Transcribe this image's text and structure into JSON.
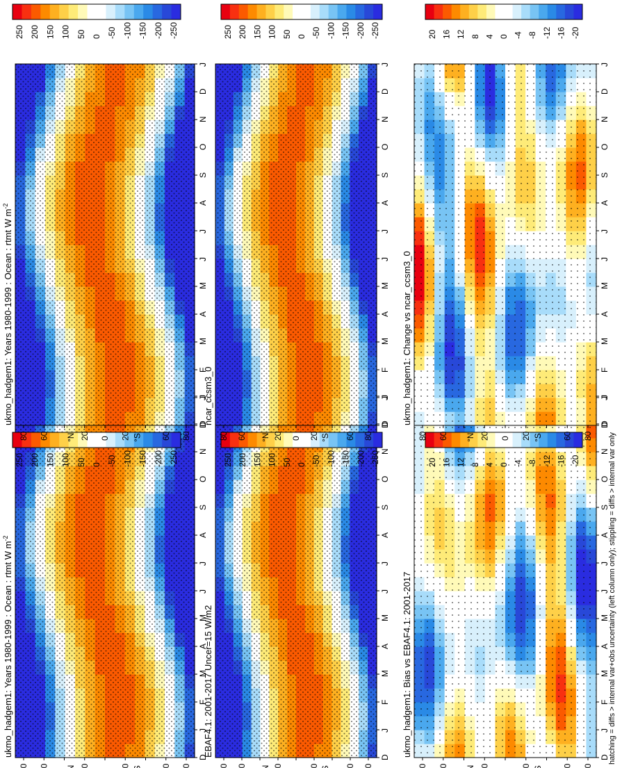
{
  "figure": {
    "footer": "hatching = diffs > internal var+obs uncertainty (left column only); stippling = diffs > internal var only",
    "orientation_note": "page rotated 90 degrees clockwise"
  },
  "colorbars": {
    "main": {
      "labels": [
        "250",
        "200",
        "150",
        "100",
        "50",
        "0",
        "-50",
        "-100",
        "-150",
        "-200",
        "-250"
      ],
      "colors": [
        "#e80010",
        "#f83010",
        "#fb5a00",
        "#fd8a00",
        "#feb020",
        "#fed048",
        "#feeb78",
        "#fffab8",
        "#ffffff",
        "#ffffff",
        "#d8f0fc",
        "#a8dcfa",
        "#78c4f4",
        "#4aa8ee",
        "#2a8ae6",
        "#2868e0",
        "#2848d8",
        "#2a2ce0"
      ]
    },
    "diff": {
      "labels": [
        "20",
        "16",
        "12",
        "8",
        "4",
        "0",
        "-4",
        "-8",
        "-12",
        "-16",
        "-20"
      ],
      "colors": [
        "#e80010",
        "#f83010",
        "#fb5a00",
        "#fd8a00",
        "#feb020",
        "#fed048",
        "#feeb78",
        "#fffab8",
        "#ffffff",
        "#ffffff",
        "#d8f0fc",
        "#a8dcfa",
        "#78c4f4",
        "#4aa8ee",
        "#2a8ae6",
        "#2868e0",
        "#2848d8",
        "#2a2ce0"
      ]
    }
  },
  "panels": [
    {
      "title": "ukmo_hadgem1: Years 1980-1999 : Ocean : rtmt W m",
      "title_sup": "-2",
      "kind": "main",
      "hatching": true
    },
    {
      "title": "EBAF4.1: 2001-2017 Uncer=15 W/m2",
      "title_sup": "",
      "kind": "main",
      "hatching": true
    },
    {
      "title": "ukmo_hadgem1: Bias vs EBAF4.1: 2001-2017",
      "title_sup": "",
      "kind": "diff",
      "hatching": true
    },
    {
      "title": "ukmo_hadgem1: Years 1980-1999 : Ocean : rtmt W m",
      "title_sup": "-2",
      "kind": "main",
      "hatching": false
    },
    {
      "title": "ncar_ccsm3_0",
      "title_sup": "",
      "kind": "main",
      "hatching": false
    },
    {
      "title": "ukmo_hadgem1: Change vs ncar_ccsm3_0",
      "title_sup": "",
      "kind": "diff",
      "hatching": false
    }
  ],
  "axes": {
    "months": [
      "D",
      "J",
      "F",
      "M",
      "A",
      "M",
      "J",
      "J",
      "A",
      "S",
      "O",
      "N",
      "D",
      "J"
    ],
    "lat_ticks": [
      "80",
      "60",
      "",
      "20",
      "0",
      "20",
      "",
      "60",
      "80"
    ],
    "lat_labels": [
      "°N",
      "°S"
    ]
  },
  "chart_data": {
    "type": "heatmap",
    "x": [
      "D",
      "J",
      "F",
      "M",
      "A",
      "M",
      "J",
      "J",
      "A",
      "S",
      "O",
      "N",
      "D",
      "J"
    ],
    "y": [
      -80,
      -60,
      -40,
      -20,
      0,
      20,
      40,
      60,
      80
    ],
    "x_label": "",
    "y_label": "",
    "series": [
      {
        "name": "ukmo_hadgem1: Years 1980-1999 : Ocean : rtmt W m-2",
        "range": [
          -250,
          250
        ],
        "units": "W m-2"
      },
      {
        "name": "EBAF4.1: 2001-2017 Uncer=15 W/m2",
        "range": [
          -250,
          250
        ],
        "units": "W/m2"
      },
      {
        "name": "ukmo_hadgem1: Bias vs EBAF4.1: 2001-2017",
        "range": [
          -20,
          20
        ]
      },
      {
        "name": "ncar_ccsm3_0",
        "range": [
          -250,
          250
        ]
      },
      {
        "name": "ukmo_hadgem1: Change vs ncar_ccsm3_0",
        "range": [
          -20,
          20
        ]
      }
    ],
    "grid": false,
    "legend": "colorbar-top-of-each-panel"
  }
}
